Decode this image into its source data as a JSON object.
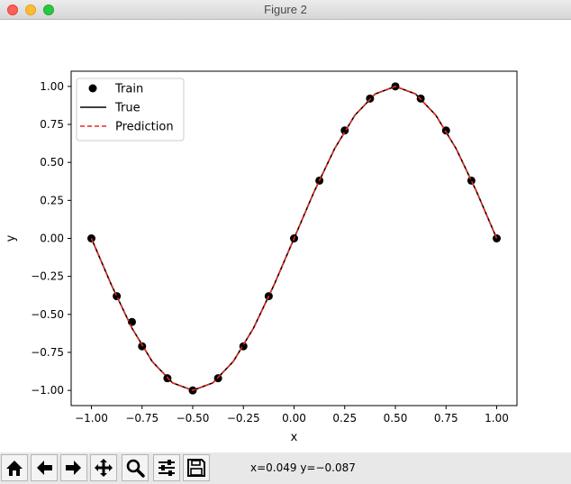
{
  "window": {
    "title": "Figure 2"
  },
  "toolbar": {
    "buttons": [
      {
        "name": "home-icon"
      },
      {
        "name": "back-arrow-icon"
      },
      {
        "name": "forward-arrow-icon"
      },
      {
        "name": "pan-icon"
      },
      {
        "name": "zoom-icon"
      },
      {
        "name": "configure-subplots-icon"
      },
      {
        "name": "save-icon"
      }
    ],
    "coordinates": "x=0.049 y=−0.087"
  },
  "chart_data": {
    "type": "line",
    "xlabel": "x",
    "ylabel": "y",
    "xlim": [
      -1.1,
      1.1
    ],
    "ylim": [
      -1.1,
      1.1
    ],
    "grid": false,
    "legend_position": "top-left",
    "xticks": [
      "−1.00",
      "−0.75",
      "−0.50",
      "−0.25",
      "0.00",
      "0.25",
      "0.50",
      "0.75",
      "1.00"
    ],
    "xtick_values": [
      -1.0,
      -0.75,
      -0.5,
      -0.25,
      0.0,
      0.25,
      0.5,
      0.75,
      1.0
    ],
    "yticks": [
      "−1.00",
      "−0.75",
      "−0.50",
      "−0.25",
      "0.00",
      "0.25",
      "0.50",
      "0.75",
      "1.00"
    ],
    "ytick_values": [
      -1.0,
      -0.75,
      -0.5,
      -0.25,
      0.0,
      0.25,
      0.5,
      0.75,
      1.0
    ],
    "series": [
      {
        "name": "Train",
        "style": "scatter",
        "color": "#000000",
        "x": [
          -1.0,
          -0.875,
          -0.8,
          -0.75,
          -0.625,
          -0.5,
          -0.375,
          -0.25,
          -0.125,
          0.0,
          0.125,
          0.25,
          0.375,
          0.5,
          0.625,
          0.75,
          0.875,
          1.0
        ],
        "y": [
          0.0,
          -0.38,
          -0.55,
          -0.71,
          -0.92,
          -1.0,
          -0.92,
          -0.71,
          -0.38,
          0.0,
          0.38,
          0.71,
          0.92,
          1.0,
          0.92,
          0.71,
          0.38,
          0.0
        ]
      },
      {
        "name": "True",
        "style": "solid",
        "color": "#000000",
        "x": [
          -1.0,
          -0.9,
          -0.8,
          -0.7,
          -0.6,
          -0.5,
          -0.4,
          -0.3,
          -0.2,
          -0.1,
          0.0,
          0.1,
          0.2,
          0.3,
          0.4,
          0.5,
          0.6,
          0.7,
          0.8,
          0.9,
          1.0
        ],
        "y": [
          0.0,
          -0.31,
          -0.59,
          -0.81,
          -0.95,
          -1.0,
          -0.95,
          -0.81,
          -0.59,
          -0.31,
          0.0,
          0.31,
          0.59,
          0.81,
          0.95,
          1.0,
          0.95,
          0.81,
          0.59,
          0.31,
          0.0
        ]
      },
      {
        "name": "Prediction",
        "style": "dashed",
        "color": "#e8281e",
        "x": [
          -1.0,
          -0.9,
          -0.8,
          -0.7,
          -0.6,
          -0.5,
          -0.4,
          -0.3,
          -0.2,
          -0.1,
          0.0,
          0.1,
          0.2,
          0.3,
          0.4,
          0.5,
          0.6,
          0.7,
          0.8,
          0.9,
          1.0
        ],
        "y": [
          0.0,
          -0.31,
          -0.59,
          -0.81,
          -0.95,
          -1.0,
          -0.95,
          -0.81,
          -0.59,
          -0.31,
          0.0,
          0.31,
          0.59,
          0.81,
          0.95,
          1.0,
          0.95,
          0.81,
          0.59,
          0.31,
          0.0
        ]
      }
    ]
  }
}
